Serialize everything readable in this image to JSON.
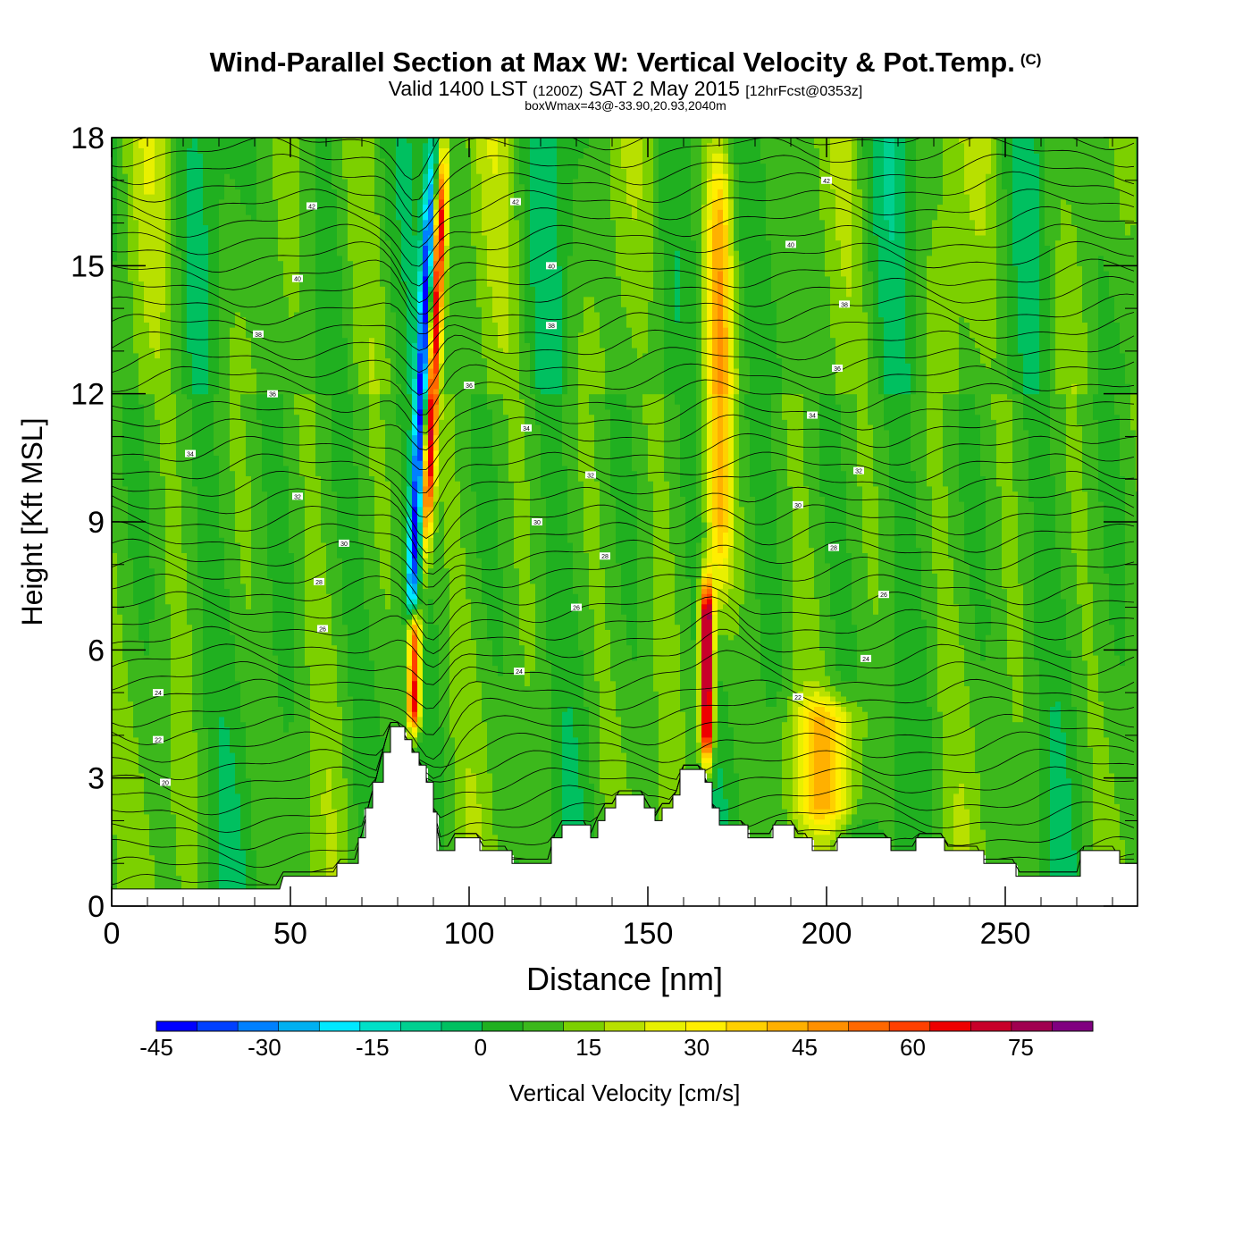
{
  "titles": {
    "main": "Wind-Parallel Section at Max W: Vertical Velocity & Pot.Temp.",
    "copyright": "(C)",
    "valid_prefix": "Valid 1400 LST",
    "valid_zulu": "(1200Z)",
    "valid_date": "SAT 2 May 2015",
    "forecast": "[12hrFcst@0353z]",
    "box": "boxWmax=43@-33.90,20.93,2040m"
  },
  "chart_data": {
    "type": "heatmap",
    "xlabel": "Distance [nm]",
    "ylabel": "Height [Kft MSL]",
    "xlim": [
      0,
      287
    ],
    "ylim": [
      0,
      18
    ],
    "x_ticks": [
      0,
      50,
      100,
      150,
      200,
      250
    ],
    "y_ticks": [
      0,
      3,
      6,
      9,
      12,
      15,
      18
    ],
    "colorbar": {
      "label": "Vertical Velocity [cm/s]",
      "min": -45,
      "max": 80,
      "step": 5,
      "tick_labels": [
        "-45",
        "-30",
        "-15",
        "0",
        "15",
        "30",
        "45",
        "60",
        "75"
      ],
      "colors": [
        "#0000ff",
        "#0040ff",
        "#0080ff",
        "#00b0f0",
        "#00e8ff",
        "#00e0c8",
        "#00d090",
        "#00c060",
        "#20b020",
        "#3cb81c",
        "#7cd000",
        "#b8e000",
        "#e8f000",
        "#ffee00",
        "#ffd000",
        "#ffb000",
        "#ff9000",
        "#ff6800",
        "#ff4000",
        "#ee0000",
        "#c8002a",
        "#a00050",
        "#800080"
      ]
    },
    "terrain_kft": [
      [
        0,
        0.4
      ],
      [
        47,
        0.4
      ],
      [
        48,
        0.7
      ],
      [
        63,
        0.7
      ],
      [
        63,
        1.0
      ],
      [
        69,
        1.0
      ],
      [
        69,
        1.6
      ],
      [
        71,
        1.6
      ],
      [
        71,
        2.3
      ],
      [
        73,
        2.3
      ],
      [
        73,
        2.9
      ],
      [
        76,
        2.9
      ],
      [
        76,
        3.6
      ],
      [
        78,
        3.6
      ],
      [
        78,
        4.2
      ],
      [
        82,
        4.2
      ],
      [
        82,
        3.9
      ],
      [
        84,
        3.9
      ],
      [
        84,
        3.6
      ],
      [
        86,
        3.6
      ],
      [
        86,
        3.3
      ],
      [
        88,
        3.3
      ],
      [
        88,
        2.9
      ],
      [
        90,
        2.9
      ],
      [
        90,
        2.2
      ],
      [
        91,
        2.2
      ],
      [
        91,
        1.3
      ],
      [
        96,
        1.3
      ],
      [
        96,
        1.6
      ],
      [
        103,
        1.6
      ],
      [
        103,
        1.3
      ],
      [
        112,
        1.3
      ],
      [
        112,
        1.0
      ],
      [
        123,
        1.0
      ],
      [
        123,
        1.6
      ],
      [
        126,
        1.6
      ],
      [
        126,
        1.9
      ],
      [
        134,
        1.9
      ],
      [
        134,
        1.6
      ],
      [
        136,
        1.6
      ],
      [
        136,
        2.0
      ],
      [
        138,
        2.0
      ],
      [
        138,
        2.3
      ],
      [
        141,
        2.3
      ],
      [
        141,
        2.6
      ],
      [
        149,
        2.6
      ],
      [
        149,
        2.3
      ],
      [
        152,
        2.3
      ],
      [
        152,
        2.0
      ],
      [
        154,
        2.0
      ],
      [
        154,
        2.3
      ],
      [
        157,
        2.3
      ],
      [
        157,
        2.6
      ],
      [
        159,
        2.6
      ],
      [
        159,
        3.2
      ],
      [
        166,
        3.2
      ],
      [
        166,
        2.9
      ],
      [
        168,
        2.9
      ],
      [
        168,
        2.3
      ],
      [
        170,
        2.3
      ],
      [
        170,
        1.9
      ],
      [
        178,
        1.9
      ],
      [
        178,
        1.6
      ],
      [
        185,
        1.6
      ],
      [
        185,
        1.9
      ],
      [
        191,
        1.9
      ],
      [
        191,
        1.6
      ],
      [
        196,
        1.6
      ],
      [
        196,
        1.3
      ],
      [
        203,
        1.3
      ],
      [
        203,
        1.6
      ],
      [
        218,
        1.6
      ],
      [
        218,
        1.3
      ],
      [
        225,
        1.3
      ],
      [
        225,
        1.6
      ],
      [
        233,
        1.6
      ],
      [
        233,
        1.3
      ],
      [
        244,
        1.3
      ],
      [
        244,
        1.0
      ],
      [
        253,
        1.0
      ],
      [
        253,
        0.7
      ],
      [
        271,
        0.7
      ],
      [
        271,
        1.3
      ],
      [
        282,
        1.3
      ],
      [
        282,
        1.0
      ],
      [
        287,
        1.0
      ]
    ],
    "features": [
      {
        "name": "downdraft-lee-wave",
        "x": 84,
        "top": 18,
        "bottom": 6,
        "slope": 4.5,
        "value": -42
      },
      {
        "name": "updraft-lee-wave",
        "x": 87,
        "top": 18,
        "bottom": 8,
        "slope": 4.5,
        "value": 55
      },
      {
        "name": "updraft-mountain-west",
        "x": 84.5,
        "top": 7,
        "bottom": 4,
        "value": 55
      },
      {
        "name": "updraft-cell-166",
        "x": 166.5,
        "top": 7.8,
        "bottom": 3.2,
        "value": 70
      },
      {
        "name": "updraft-column-170",
        "x": 170,
        "top": 18,
        "bottom": 7,
        "value": 28
      },
      {
        "name": "updraft-blob-200",
        "x": 200,
        "top": 5,
        "bottom": 1.8,
        "value": 24
      }
    ],
    "isentrope_labels": [
      {
        "text": "42",
        "x": 56,
        "y": 16.4
      },
      {
        "text": "40",
        "x": 52,
        "y": 14.7
      },
      {
        "text": "38",
        "x": 41,
        "y": 13.4
      },
      {
        "text": "36",
        "x": 45,
        "y": 12.0
      },
      {
        "text": "34",
        "x": 22,
        "y": 10.6
      },
      {
        "text": "32",
        "x": 52,
        "y": 9.6
      },
      {
        "text": "30",
        "x": 65,
        "y": 8.5
      },
      {
        "text": "28",
        "x": 58,
        "y": 7.6
      },
      {
        "text": "26",
        "x": 59,
        "y": 6.5
      },
      {
        "text": "24",
        "x": 13,
        "y": 5.0
      },
      {
        "text": "22",
        "x": 13,
        "y": 3.9
      },
      {
        "text": "20",
        "x": 15,
        "y": 2.9
      },
      {
        "text": "42",
        "x": 113,
        "y": 16.5
      },
      {
        "text": "40",
        "x": 123,
        "y": 15.0
      },
      {
        "text": "38",
        "x": 123,
        "y": 13.6
      },
      {
        "text": "36",
        "x": 100,
        "y": 12.2
      },
      {
        "text": "34",
        "x": 116,
        "y": 11.2
      },
      {
        "text": "32",
        "x": 134,
        "y": 10.1
      },
      {
        "text": "30",
        "x": 119,
        "y": 9.0
      },
      {
        "text": "28",
        "x": 138,
        "y": 8.2
      },
      {
        "text": "26",
        "x": 130,
        "y": 7.0
      },
      {
        "text": "24",
        "x": 114,
        "y": 5.5
      },
      {
        "text": "42",
        "x": 200,
        "y": 17.0
      },
      {
        "text": "40",
        "x": 190,
        "y": 15.5
      },
      {
        "text": "38",
        "x": 205,
        "y": 14.1
      },
      {
        "text": "36",
        "x": 203,
        "y": 12.6
      },
      {
        "text": "34",
        "x": 196,
        "y": 11.5
      },
      {
        "text": "32",
        "x": 209,
        "y": 10.2
      },
      {
        "text": "30",
        "x": 192,
        "y": 9.4
      },
      {
        "text": "28",
        "x": 202,
        "y": 8.4
      },
      {
        "text": "26",
        "x": 216,
        "y": 7.3
      },
      {
        "text": "24",
        "x": 211,
        "y": 5.8
      },
      {
        "text": "22",
        "x": 192,
        "y": 4.9
      }
    ]
  },
  "colors": {
    "frame": "#000000",
    "background": "#ffffff",
    "terrain": "#ffffff",
    "isentrope": "#000000"
  }
}
